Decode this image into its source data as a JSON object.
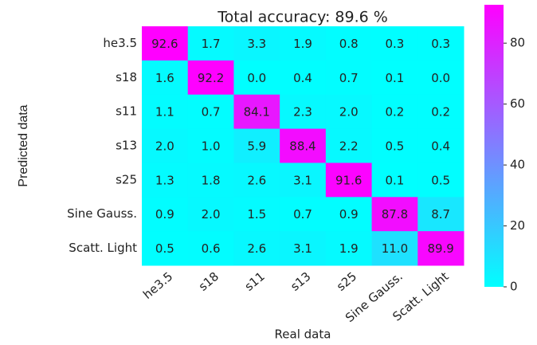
{
  "chart_data": {
    "type": "heatmap",
    "title": "Total accuracy: 89.6 %",
    "x_label": "Real data",
    "y_label": "Predicted data",
    "columns": [
      "he3.5",
      "s18",
      "s11",
      "s13",
      "s25",
      "Sine Gauss.",
      "Scatt. Light"
    ],
    "rows": [
      "he3.5",
      "s18",
      "s11",
      "s13",
      "s25",
      "Sine Gauss.",
      "Scatt. Light"
    ],
    "values": [
      [
        92.6,
        1.7,
        3.3,
        1.9,
        0.8,
        0.3,
        0.3
      ],
      [
        1.6,
        92.2,
        0,
        0.4,
        0.7,
        0.1,
        0
      ],
      [
        1.1,
        0.7,
        84.1,
        2.3,
        2,
        0.2,
        0.2
      ],
      [
        2,
        1,
        5.9,
        88.4,
        2.2,
        0.5,
        0.4
      ],
      [
        1.3,
        1.8,
        2.6,
        3.1,
        91.6,
        0.1,
        0.5
      ],
      [
        0.9,
        2,
        1.5,
        0.7,
        0.9,
        87.8,
        8.7
      ],
      [
        0.5,
        0.6,
        2.6,
        3.1,
        1.9,
        11,
        89.9
      ]
    ],
    "value_labels": [
      [
        "92.6",
        "1.7",
        "3.3",
        "1.9",
        "0.8",
        "0.3",
        "0.3"
      ],
      [
        "1.6",
        "92.2",
        "0.0",
        "0.4",
        "0.7",
        "0.1",
        "0.0"
      ],
      [
        "1.1",
        "0.7",
        "84.1",
        "2.3",
        "2.0",
        "0.2",
        "0.2"
      ],
      [
        "2.0",
        "1.0",
        "5.9",
        "88.4",
        "2.2",
        "0.5",
        "0.4"
      ],
      [
        "1.3",
        "1.8",
        "2.6",
        "3.1",
        "91.6",
        "0.1",
        "0.5"
      ],
      [
        "0.9",
        "2.0",
        "1.5",
        "0.7",
        "0.9",
        "87.8",
        "8.7"
      ],
      [
        "0.5",
        "0.6",
        "2.6",
        "3.1",
        "1.9",
        "11.0",
        "89.9"
      ]
    ],
    "colormap": [
      "#00ffff",
      "#ff00ff"
    ],
    "clim": [
      0,
      92.6
    ],
    "cticks": [
      0,
      20,
      40,
      60,
      80
    ]
  }
}
